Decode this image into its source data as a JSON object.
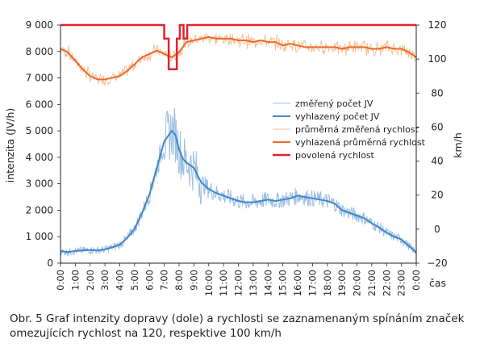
{
  "chart_data": {
    "type": "line",
    "ylabel": "intenzita (JV/h)",
    "y2label": "km/h",
    "xlabel": "čas",
    "ylim": [
      0,
      9000
    ],
    "y2lim": [
      -20,
      120
    ],
    "y_ticks": [
      "0",
      "1 000",
      "2 000",
      "3 000",
      "4 000",
      "5 000",
      "6 000",
      "7 000",
      "8 000",
      "9 000"
    ],
    "y2_ticks": [
      "−20",
      "0",
      "20",
      "40",
      "60",
      "80",
      "100",
      "120"
    ],
    "x_ticks": [
      "0:00",
      "1:00",
      "2:00",
      "3:00",
      "4:00",
      "5:00",
      "6:00",
      "7:00",
      "8:00",
      "9:00",
      "10:00",
      "11:00",
      "12:00",
      "13:00",
      "14:00",
      "15:00",
      "16:00",
      "17:00",
      "18:00",
      "19:00",
      "20:00",
      "21:00",
      "22:00",
      "23:00",
      "0:00"
    ],
    "legend": {
      "position": "center-right",
      "entries": [
        {
          "name": "změřený počet JV",
          "color": "#9dbfe3",
          "width": 1
        },
        {
          "name": "vyhlazený počet JV",
          "color": "#3f86c6",
          "width": 2
        },
        {
          "name": "průměrná změřená rychlost",
          "color": "#f7bf94",
          "width": 1
        },
        {
          "name": "vyhlazená průměrná rychlost",
          "color": "#ec6a2b",
          "width": 2
        },
        {
          "name": "povolená rychlost",
          "color": "#e2242a",
          "width": 2.5
        }
      ]
    },
    "series": [
      {
        "name": "vyhlazený počet JV",
        "axis": "left",
        "x": [
          0,
          0.5,
          1,
          1.5,
          2,
          2.5,
          3,
          3.5,
          4,
          4.5,
          5,
          5.5,
          6,
          6.25,
          6.5,
          6.75,
          7,
          7.25,
          7.5,
          7.75,
          8,
          8.25,
          8.5,
          8.75,
          9,
          9.25,
          9.5,
          10,
          10.5,
          11,
          11.5,
          12,
          12.5,
          13,
          13.5,
          14,
          14.5,
          15,
          15.5,
          16,
          16.5,
          17,
          17.5,
          18,
          18.5,
          19,
          19.5,
          20,
          20.5,
          21,
          21.5,
          22,
          22.5,
          23,
          23.5,
          24
        ],
        "values": [
          450,
          420,
          460,
          480,
          500,
          480,
          520,
          600,
          700,
          950,
          1300,
          1900,
          2600,
          3100,
          3600,
          4100,
          4600,
          4800,
          5000,
          4850,
          4300,
          3950,
          3800,
          3700,
          3600,
          3300,
          3050,
          2800,
          2650,
          2550,
          2450,
          2350,
          2300,
          2300,
          2350,
          2400,
          2350,
          2400,
          2450,
          2550,
          2500,
          2450,
          2400,
          2350,
          2250,
          2000,
          1900,
          1800,
          1700,
          1500,
          1350,
          1150,
          1000,
          900,
          650,
          400
        ]
      },
      {
        "name": "vyhlazená průměrná rychlost",
        "axis": "right",
        "x": [
          0,
          0.5,
          1,
          1.5,
          2,
          2.5,
          3,
          3.5,
          4,
          4.5,
          5,
          5.5,
          6,
          6.5,
          7,
          7.5,
          8,
          8.5,
          9,
          9.5,
          10,
          10.5,
          11,
          11.5,
          12,
          12.5,
          13,
          13.5,
          14,
          14.5,
          15,
          15.5,
          16,
          16.5,
          17,
          17.5,
          18,
          18.5,
          19,
          19.5,
          20,
          20.5,
          21,
          21.5,
          22,
          22.5,
          23,
          23.5,
          24
        ],
        "values": [
          106,
          104,
          99,
          94,
          90,
          88,
          88,
          89,
          90,
          93,
          97,
          101,
          103,
          105,
          103,
          101,
          104,
          110,
          111,
          112,
          113,
          112,
          112,
          112,
          111,
          111,
          110,
          111,
          110,
          110,
          108,
          109,
          108,
          107,
          107,
          107,
          107,
          107,
          106,
          107,
          107,
          107,
          106,
          106,
          107,
          106,
          106,
          104,
          101
        ]
      },
      {
        "name": "povolená rychlost",
        "axis": "right",
        "x": [
          0,
          7.0,
          7.0,
          7.3,
          7.3,
          7.85,
          7.85,
          8.05,
          8.05,
          8.3,
          8.3,
          8.55,
          8.55,
          9.2,
          9.2,
          24
        ],
        "values": [
          120,
          120,
          112,
          112,
          94,
          94,
          112,
          112,
          120,
          120,
          112,
          112,
          120,
          120,
          120,
          120
        ]
      }
    ]
  },
  "caption": {
    "label": "Obr. 5",
    "text": "Graf intenzity dopravy (dole) a rychlosti se zaznamenaným spínáním značek omezujících rychlost na 120, respektive 100 km/h"
  }
}
